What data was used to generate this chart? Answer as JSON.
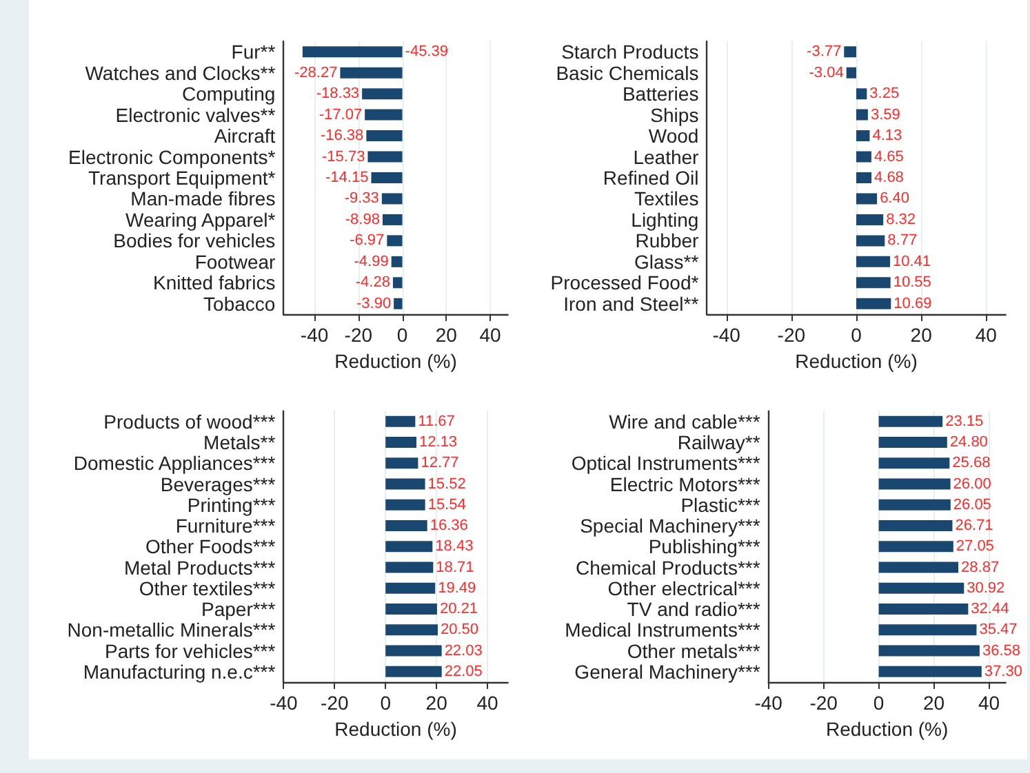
{
  "chart_data": [
    {
      "type": "bar",
      "orientation": "horizontal",
      "categories": [
        "Fur**",
        "Watches and Clocks**",
        "Computing",
        "Electronic valves**",
        "Aircraft",
        "Electronic Components*",
        "Transport Equipment*",
        "Man-made fibres",
        "Wearing Apparel*",
        "Bodies for vehicles",
        "Footwear",
        "Knitted fabrics",
        "Tobacco"
      ],
      "values": [
        -45.39,
        -28.27,
        -18.33,
        -17.07,
        -16.38,
        -15.73,
        -14.15,
        -9.33,
        -8.98,
        -6.97,
        -4.99,
        -4.28,
        -3.9
      ],
      "value_labels": [
        "-45.39",
        "-28.27",
        "-18.33",
        "-17.07",
        "-16.38",
        "-15.73",
        "-14.15",
        "-9.33",
        "-8.98",
        "-6.97",
        "-4.99",
        "-4.28",
        "-3.90"
      ],
      "color": "#1a476f",
      "xlim": [
        -54,
        48
      ],
      "xticks": [
        -40,
        -20,
        0,
        20,
        40
      ],
      "xlabel": "Reduction (%)",
      "grid": "x"
    },
    {
      "type": "bar",
      "orientation": "horizontal",
      "categories": [
        "Starch Products",
        "Basic Chemicals",
        "Batteries",
        "Ships",
        "Wood",
        "Leather",
        "Refined Oil",
        "Textiles",
        "Lighting",
        "Rubber",
        "Glass**",
        "Processed Food*",
        "Iron and Steel**"
      ],
      "values": [
        -3.77,
        -3.04,
        3.25,
        3.59,
        4.13,
        4.65,
        4.68,
        6.4,
        8.32,
        8.77,
        10.41,
        10.55,
        10.69
      ],
      "value_labels": [
        "-3.77",
        "-3.04",
        "3.25",
        "3.59",
        "4.13",
        "4.65",
        "4.68",
        "6.40",
        "8.32",
        "8.77",
        "10.41",
        "10.55",
        "10.69"
      ],
      "color": "#1a476f",
      "xlim": [
        -46,
        46
      ],
      "xticks": [
        -40,
        -20,
        0,
        20,
        40
      ],
      "xlabel": "Reduction (%)",
      "grid": "x"
    },
    {
      "type": "bar",
      "orientation": "horizontal",
      "categories": [
        "Products of wood***",
        "Metals**",
        "Domestic Appliances***",
        "Beverages***",
        "Printing***",
        "Furniture***",
        "Other Foods***",
        "Metal Products***",
        "Other textiles***",
        "Paper***",
        "Non-metallic Minerals***",
        "Parts for vehicles***",
        "Manufacturing n.e.c***"
      ],
      "values": [
        11.67,
        12.13,
        12.77,
        15.52,
        15.54,
        16.36,
        18.43,
        18.71,
        19.49,
        20.21,
        20.5,
        22.03,
        22.05
      ],
      "value_labels": [
        "11.67",
        "12.13",
        "12.77",
        "15.52",
        "15.54",
        "16.36",
        "18.43",
        "18.71",
        "19.49",
        "20.21",
        "20.50",
        "22.03",
        "22.05"
      ],
      "color": "#1a476f",
      "xlim": [
        -40,
        48
      ],
      "xticks": [
        -40,
        -20,
        0,
        20,
        40
      ],
      "xlabel": "Reduction (%)",
      "grid": "x"
    },
    {
      "type": "bar",
      "orientation": "horizontal",
      "categories": [
        "Wire and cable***",
        "Railway**",
        "Optical Instruments***",
        "Electric Motors***",
        "Plastic***",
        "Special Machinery***",
        "Publishing***",
        "Chemical Products***",
        "Other electrical***",
        "TV and radio***",
        "Medical Instruments***",
        "Other metals***",
        "General Machinery***"
      ],
      "values": [
        23.15,
        24.8,
        25.68,
        26.0,
        26.05,
        26.71,
        27.05,
        28.87,
        30.92,
        32.44,
        35.47,
        36.58,
        37.3
      ],
      "value_labels": [
        "23.15",
        "24.80",
        "25.68",
        "26.00",
        "26.05",
        "26.71",
        "27.05",
        "28.87",
        "30.92",
        "32.44",
        "35.47",
        "36.58",
        "37.30"
      ],
      "color": "#1a476f",
      "xlim": [
        -40,
        46
      ],
      "xticks": [
        -40,
        -20,
        0,
        20,
        40
      ],
      "xlabel": "Reduction (%)",
      "grid": "x"
    }
  ]
}
